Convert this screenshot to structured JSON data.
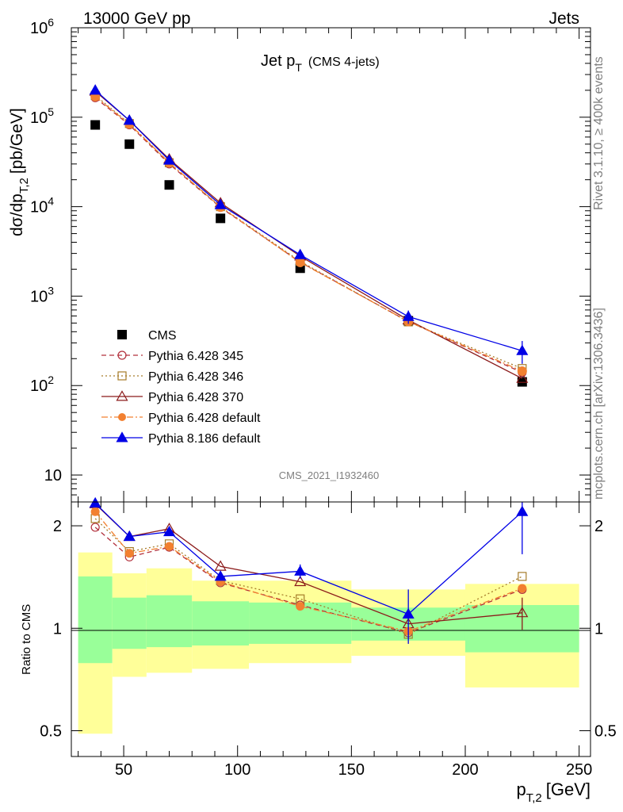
{
  "header": {
    "left": "13000 GeV pp",
    "right": "Jets"
  },
  "side": {
    "rivet": "Rivet 3.1.10, ≥ 400k events",
    "mcplots": "mcplots.cern.ch [arXiv:1306.3436]"
  },
  "colors": {
    "cms": "#000000",
    "p345": "#b2303c",
    "p346": "#a67c2a",
    "p370": "#8b1a1a",
    "p6def": "#f28030",
    "p8def": "#0000e6",
    "band_inner": "#99ff99",
    "band_outer": "#ffff99"
  },
  "chart_data": [
    {
      "type": "scatter",
      "title": "Jet p",
      "title_sub": "T",
      "title_extra": "(CMS 4-jets)",
      "watermark": "CMS_2021_I1932460",
      "ylabel": "dσ/dp",
      "ylabel_sub": "T,2",
      "ylabel_unit": "[pb/GeV]",
      "yscale": "log",
      "ylim": [
        5,
        1000000
      ],
      "xlim": [
        27,
        255
      ],
      "yticks": [
        {
          "v": 10,
          "m": "10",
          "e": ""
        },
        {
          "v": 100,
          "m": "10",
          "e": "2"
        },
        {
          "v": 1000,
          "m": "10",
          "e": "3"
        },
        {
          "v": 10000,
          "m": "10",
          "e": "4"
        },
        {
          "v": 100000,
          "m": "10",
          "e": "5"
        },
        {
          "v": 1000000,
          "m": "10",
          "e": "6"
        }
      ],
      "legend_position": "bottom-left",
      "x": [
        37.5,
        52.5,
        70,
        92.5,
        127.5,
        175,
        225
      ],
      "series": [
        {
          "key": "cms",
          "name": "CMS",
          "marker": "square",
          "line": "none",
          "values": [
            82000,
            50000,
            17500,
            7400,
            2050,
            530,
            110
          ]
        },
        {
          "key": "p345",
          "name": "Pythia 6.428 345",
          "marker": "open-circle",
          "line": "dashed",
          "values": [
            165000,
            82000,
            30000,
            9800,
            2400,
            520,
            140
          ]
        },
        {
          "key": "p346",
          "name": "Pythia 6.428 346",
          "marker": "open-square",
          "line": "dotted",
          "values": [
            175000,
            85000,
            31000,
            10000,
            2450,
            515,
            155
          ]
        },
        {
          "key": "p370",
          "name": "Pythia 6.428 370",
          "marker": "open-triangle",
          "line": "solid",
          "values": [
            195000,
            92000,
            34000,
            11000,
            2800,
            540,
            120
          ]
        },
        {
          "key": "p6def",
          "name": "Pythia 6.428 default",
          "marker": "filled-square",
          "line": "dashdot",
          "values": [
            170000,
            84000,
            31000,
            9900,
            2380,
            520,
            145
          ]
        },
        {
          "key": "p8def",
          "name": "Pythia 8.186 default",
          "marker": "filled-triangle",
          "line": "solid",
          "values": [
            200000,
            92000,
            33000,
            10500,
            2900,
            590,
            245
          ],
          "err": [
            0,
            0,
            0,
            0,
            0,
            100,
            70
          ]
        }
      ]
    },
    {
      "type": "scatter",
      "ylabel": "Ratio to CMS",
      "yscale": "log",
      "ylim": [
        0.42,
        2.35
      ],
      "xlim": [
        27,
        255
      ],
      "yticks": [
        0.5,
        1,
        2
      ],
      "xticks": [
        50,
        100,
        150,
        200,
        250
      ],
      "xlabel": "p",
      "xlabel_sub": "T,2",
      "xlabel_unit": "[GeV]",
      "bands": [
        {
          "x0": 30,
          "x1": 45,
          "inner": [
            0.79,
            1.42
          ],
          "outer": [
            0.49,
            1.67
          ]
        },
        {
          "x0": 45,
          "x1": 60,
          "inner": [
            0.87,
            1.23
          ],
          "outer": [
            0.72,
            1.45
          ]
        },
        {
          "x0": 60,
          "x1": 80,
          "inner": [
            0.88,
            1.25
          ],
          "outer": [
            0.74,
            1.5
          ]
        },
        {
          "x0": 80,
          "x1": 105,
          "inner": [
            0.89,
            1.2
          ],
          "outer": [
            0.76,
            1.38
          ]
        },
        {
          "x0": 105,
          "x1": 150,
          "inner": [
            0.9,
            1.19
          ],
          "outer": [
            0.79,
            1.38
          ]
        },
        {
          "x0": 150,
          "x1": 200,
          "inner": [
            0.92,
            1.15
          ],
          "outer": [
            0.83,
            1.3
          ]
        },
        {
          "x0": 200,
          "x1": 250,
          "inner": [
            0.85,
            1.17
          ],
          "outer": [
            0.67,
            1.35
          ]
        }
      ],
      "x": [
        37.5,
        52.5,
        70,
        92.5,
        127.5,
        175,
        225
      ],
      "series": [
        {
          "key": "p345",
          "name": "Pythia 6.428 345",
          "values": [
            1.98,
            1.62,
            1.73,
            1.36,
            1.17,
            0.97,
            1.3
          ]
        },
        {
          "key": "p346",
          "name": "Pythia 6.428 346",
          "values": [
            2.1,
            1.68,
            1.77,
            1.38,
            1.22,
            0.96,
            1.42
          ]
        },
        {
          "key": "p370",
          "name": "Pythia 6.428 370",
          "values": [
            2.32,
            1.86,
            1.96,
            1.52,
            1.37,
            1.03,
            1.11
          ],
          "err": [
            0,
            0,
            0,
            0,
            0,
            0,
            0.12
          ]
        },
        {
          "key": "p6def",
          "name": "Pythia 6.428 default",
          "values": [
            2.2,
            1.66,
            1.74,
            1.37,
            1.16,
            0.98,
            1.31
          ]
        },
        {
          "key": "p8def",
          "name": "Pythia 8.186 default",
          "values": [
            2.33,
            1.86,
            1.92,
            1.42,
            1.47,
            1.1,
            2.2
          ],
          "err": [
            0,
            0,
            0.05,
            0,
            0.07,
            0.2,
            0.55
          ]
        }
      ]
    }
  ]
}
